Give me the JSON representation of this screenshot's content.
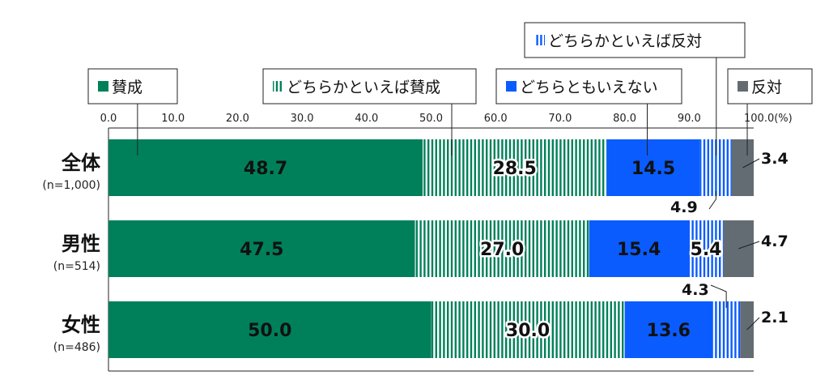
{
  "chart_data": {
    "type": "bar",
    "orientation": "horizontal",
    "stacked": true,
    "xlim": [
      0,
      100
    ],
    "x_ticks": [
      "0.0",
      "10.0",
      "20.0",
      "30.0",
      "40.0",
      "50.0",
      "60.0",
      "70.0",
      "80.0",
      "90.0",
      "100.0(%)"
    ],
    "categories": [
      {
        "label": "全体",
        "sub": "(n=1,000)"
      },
      {
        "label": "男性",
        "sub": "(n=514)"
      },
      {
        "label": "女性",
        "sub": "(n=486)"
      }
    ],
    "series": [
      {
        "name": "賛成",
        "color": "#00805a",
        "pattern": "solid",
        "values": [
          48.7,
          47.5,
          50.0
        ]
      },
      {
        "name": "どちらかといえば賛成",
        "color": "#00805a",
        "pattern": "vstripe",
        "values": [
          28.5,
          27.0,
          30.0
        ]
      },
      {
        "name": "どちらともいえない",
        "color": "#0a5cff",
        "pattern": "solid",
        "values": [
          14.5,
          15.4,
          13.6
        ]
      },
      {
        "name": "どちらかといえば反対",
        "color": "#0a5cff",
        "pattern": "vstripe",
        "values": [
          4.9,
          5.4,
          4.3
        ]
      },
      {
        "name": "反対",
        "color": "#646c73",
        "pattern": "solid",
        "values": [
          3.4,
          4.7,
          2.1
        ]
      }
    ],
    "grid": false
  }
}
